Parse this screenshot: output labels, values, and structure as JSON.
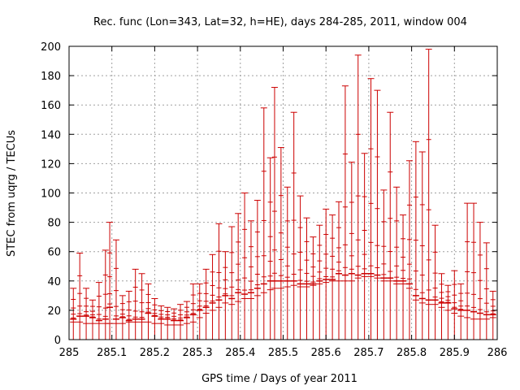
{
  "chart_data": {
    "type": "scatter",
    "title": "Rec. func (Lon=343, Lat=32, h=HE), days 284-285, 2011, window 004",
    "xlabel": "GPS time / Days of year 2011",
    "ylabel": "STEC from uqrg / TECUs",
    "xlim": [
      285,
      286
    ],
    "ylim": [
      0,
      200
    ],
    "xticks": [
      "285",
      "285.1",
      "285.2",
      "285.3",
      "285.4",
      "285.5",
      "285.6",
      "285.7",
      "285.8",
      "285.9",
      "286"
    ],
    "yticks": [
      "0",
      "20",
      "40",
      "60",
      "80",
      "100",
      "120",
      "140",
      "160",
      "180",
      "200"
    ],
    "grid": true,
    "colors": {
      "series": "#cc0000",
      "grid": "#a0a0a0",
      "axis": "#000000"
    },
    "series": [
      {
        "style": "errorbars",
        "x": [
          285.01,
          285.025,
          285.04,
          285.055,
          285.07,
          285.085,
          285.095,
          285.11,
          285.125,
          285.14,
          285.155,
          285.17,
          285.185,
          285.2,
          285.215,
          285.23,
          285.245,
          285.26,
          285.275,
          285.29,
          285.305,
          285.32,
          285.335,
          285.35,
          285.365,
          285.38,
          285.395,
          285.41,
          285.425,
          285.44,
          285.455,
          285.47,
          285.48,
          285.495,
          285.51,
          285.525,
          285.54,
          285.555,
          285.57,
          285.585,
          285.6,
          285.615,
          285.63,
          285.645,
          285.66,
          285.675,
          285.69,
          285.705,
          285.72,
          285.735,
          285.75,
          285.765,
          285.78,
          285.795,
          285.81,
          285.825,
          285.84,
          285.855,
          285.87,
          285.885,
          285.9,
          285.915,
          285.93,
          285.945,
          285.96,
          285.975,
          285.99
        ],
        "y": [
          14,
          16,
          16,
          15,
          13,
          14,
          22,
          14,
          15,
          13,
          14,
          14,
          18,
          16,
          14,
          14,
          13,
          13,
          15,
          17,
          20,
          22,
          25,
          27,
          30,
          28,
          32,
          31,
          32,
          35,
          38,
          40,
          40,
          40,
          40,
          40,
          38,
          38,
          38,
          40,
          41,
          41,
          45,
          44,
          45,
          44,
          45,
          45,
          44,
          42,
          42,
          40,
          40,
          38,
          30,
          28,
          27,
          27,
          25,
          25,
          21,
          20,
          20,
          19,
          18,
          17,
          17
        ],
        "y_high": [
          35,
          59,
          35,
          27,
          39,
          61,
          80,
          68,
          30,
          33,
          48,
          45,
          38,
          28,
          23,
          22,
          21,
          24,
          26,
          38,
          38,
          48,
          58,
          79,
          60,
          77,
          86,
          100,
          81,
          95,
          158,
          124,
          172,
          131,
          104,
          155,
          98,
          83,
          70,
          78,
          89,
          85,
          94,
          173,
          121,
          194,
          127,
          178,
          170,
          102,
          155,
          104,
          85,
          122,
          135,
          128,
          198,
          78,
          45,
          37,
          47,
          38,
          93,
          93,
          80,
          66,
          33
        ],
        "y_low": [
          12,
          12,
          11,
          11,
          11,
          11,
          11,
          11,
          11,
          12,
          12,
          12,
          12,
          11,
          11,
          10,
          10,
          10,
          11,
          12,
          15,
          18,
          20,
          22,
          25,
          24,
          26,
          28,
          28,
          30,
          32,
          34,
          35,
          35,
          36,
          37,
          36,
          36,
          37,
          38,
          39,
          40,
          40,
          40,
          40,
          42,
          43,
          43,
          42,
          40,
          40,
          38,
          38,
          35,
          27,
          25,
          24,
          24,
          22,
          20,
          18,
          16,
          15,
          14,
          14,
          14,
          15
        ]
      }
    ]
  }
}
